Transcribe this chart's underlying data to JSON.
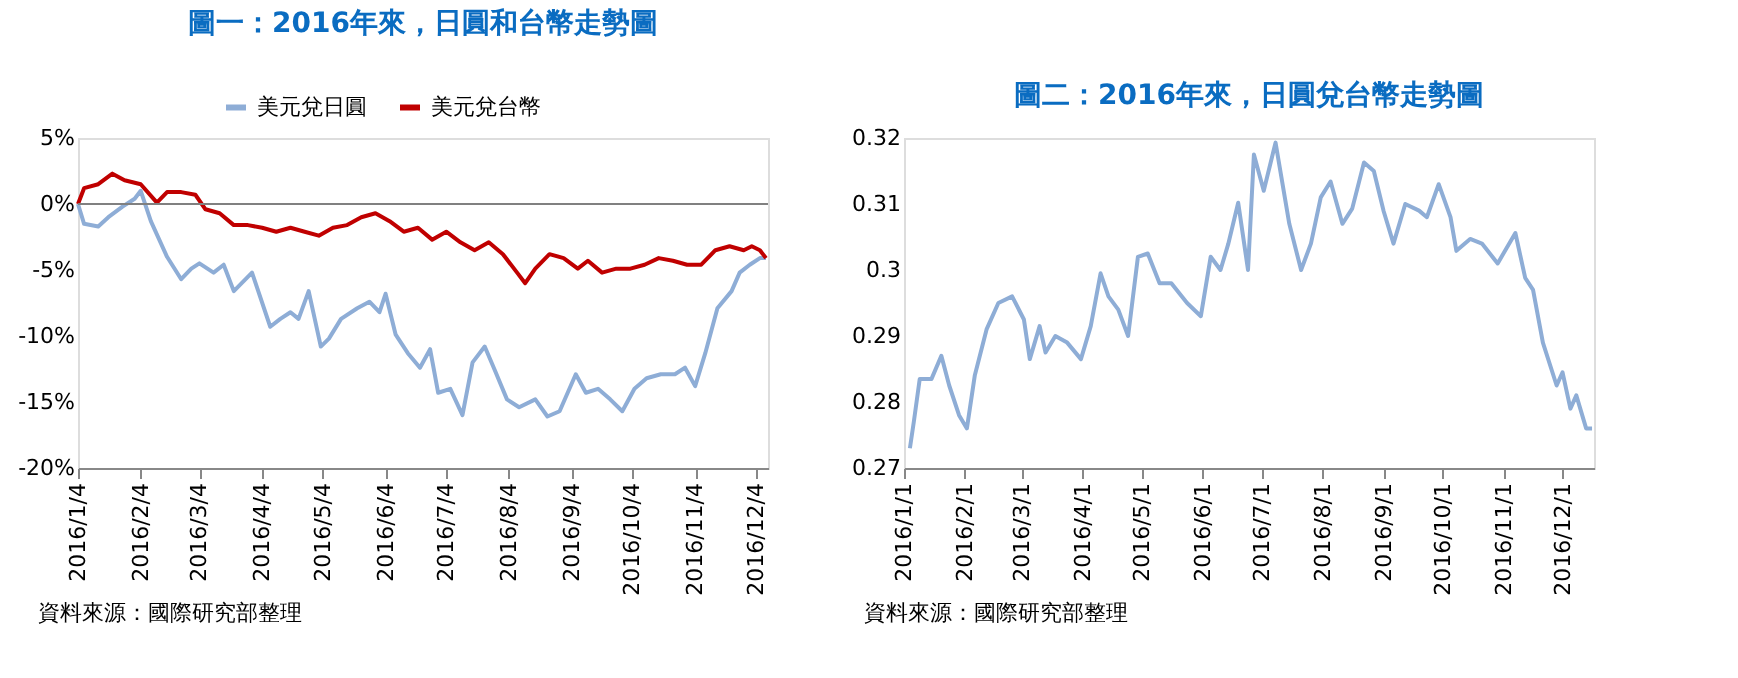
{
  "chart_data": [
    {
      "type": "line",
      "title": "圖一：2016年來，日圓和台幣走勢圖",
      "legend": "top",
      "grid": false,
      "marker": "none",
      "line_style": "solid",
      "xlim": [
        "2016-01-04",
        "2016-12-10"
      ],
      "xticks": [
        {
          "value": "2016-01-04",
          "label": "2016/1/4"
        },
        {
          "value": "2016-02-04",
          "label": "2016/2/4"
        },
        {
          "value": "2016-03-04",
          "label": "2016/3/4"
        },
        {
          "value": "2016-04-04",
          "label": "2016/4/4"
        },
        {
          "value": "2016-05-04",
          "label": "2016/5/4"
        },
        {
          "value": "2016-06-04",
          "label": "2016/6/4"
        },
        {
          "value": "2016-07-04",
          "label": "2016/7/4"
        },
        {
          "value": "2016-08-04",
          "label": "2016/8/4"
        },
        {
          "value": "2016-09-04",
          "label": "2016/9/4"
        },
        {
          "value": "2016-10-04",
          "label": "2016/10/4"
        },
        {
          "value": "2016-11-04",
          "label": "2016/11/4"
        },
        {
          "value": "2016-12-04",
          "label": "2016/12/4"
        }
      ],
      "ylim": [
        -20,
        5
      ],
      "yticks": [
        {
          "value": -20,
          "label": "-20%"
        },
        {
          "value": -15,
          "label": "-15%"
        },
        {
          "value": -10,
          "label": "-10%"
        },
        {
          "value": -5,
          "label": "-5%"
        },
        {
          "value": 0,
          "label": "0%"
        },
        {
          "value": 5,
          "label": "5%"
        }
      ],
      "ref_lines": [
        {
          "axis": "y",
          "value": 0,
          "color": "#808080"
        }
      ],
      "series": [
        {
          "name": "美元兌日圓",
          "color": "#8eadd6",
          "x": [
            "2016-01-04",
            "2016-01-07",
            "2016-01-14",
            "2016-01-19",
            "2016-01-26",
            "2016-02-01",
            "2016-02-04",
            "2016-02-09",
            "2016-02-17",
            "2016-02-24",
            "2016-02-29",
            "2016-03-04",
            "2016-03-11",
            "2016-03-16",
            "2016-03-21",
            "2016-03-30",
            "2016-04-08",
            "2016-04-13",
            "2016-04-18",
            "2016-04-22",
            "2016-04-27",
            "2016-05-03",
            "2016-05-07",
            "2016-05-13",
            "2016-05-21",
            "2016-05-27",
            "2016-06-01",
            "2016-06-04",
            "2016-06-09",
            "2016-06-15",
            "2016-06-21",
            "2016-06-26",
            "2016-06-30",
            "2016-07-06",
            "2016-07-12",
            "2016-07-17",
            "2016-07-23",
            "2016-07-28",
            "2016-08-03",
            "2016-08-09",
            "2016-08-17",
            "2016-08-23",
            "2016-08-29",
            "2016-09-06",
            "2016-09-11",
            "2016-09-17",
            "2016-09-23",
            "2016-09-29",
            "2016-10-05",
            "2016-10-11",
            "2016-10-18",
            "2016-10-25",
            "2016-10-30",
            "2016-11-04",
            "2016-11-09",
            "2016-11-15",
            "2016-11-22",
            "2016-11-26",
            "2016-12-01",
            "2016-12-06",
            "2016-12-09"
          ],
          "values": [
            0,
            -1.5,
            -1.7,
            -1,
            -0.2,
            0.4,
            1,
            -1.3,
            -4,
            -5.7,
            -4.9,
            -4.5,
            -5.2,
            -4.6,
            -6.6,
            -5.2,
            -9.3,
            -8.7,
            -8.2,
            -8.7,
            -6.6,
            -10.8,
            -10.2,
            -8.7,
            -7.9,
            -7.4,
            -8.2,
            -6.8,
            -9.9,
            -11.3,
            -12.4,
            -11,
            -14.3,
            -14,
            -16,
            -12,
            -10.8,
            -12.6,
            -14.8,
            -15.4,
            -14.8,
            -16.1,
            -15.7,
            -12.9,
            -14.3,
            -14,
            -14.8,
            -15.7,
            -14,
            -13.2,
            -12.9,
            -12.9,
            -12.4,
            -13.8,
            -11.3,
            -7.9,
            -6.6,
            -5.2,
            -4.6,
            -4.1,
            -4.1
          ]
        },
        {
          "name": "美元兌台幣",
          "color": "#c00000",
          "x": [
            "2016-01-04",
            "2016-01-07",
            "2016-01-14",
            "2016-01-21",
            "2016-01-27",
            "2016-02-04",
            "2016-02-12",
            "2016-02-17",
            "2016-02-24",
            "2016-03-02",
            "2016-03-07",
            "2016-03-14",
            "2016-03-21",
            "2016-03-28",
            "2016-04-04",
            "2016-04-11",
            "2016-04-18",
            "2016-04-25",
            "2016-05-02",
            "2016-05-09",
            "2016-05-16",
            "2016-05-23",
            "2016-05-30",
            "2016-06-06",
            "2016-06-13",
            "2016-06-20",
            "2016-06-27",
            "2016-07-04",
            "2016-07-11",
            "2016-07-18",
            "2016-07-25",
            "2016-08-01",
            "2016-08-08",
            "2016-08-12",
            "2016-08-17",
            "2016-08-24",
            "2016-08-31",
            "2016-09-07",
            "2016-09-12",
            "2016-09-19",
            "2016-09-26",
            "2016-10-03",
            "2016-10-10",
            "2016-10-17",
            "2016-10-24",
            "2016-10-31",
            "2016-11-07",
            "2016-11-14",
            "2016-11-21",
            "2016-11-28",
            "2016-12-02",
            "2016-12-06",
            "2016-12-09"
          ],
          "values": [
            0,
            1.2,
            1.5,
            2.3,
            1.8,
            1.5,
            0.1,
            0.9,
            0.9,
            0.7,
            -0.4,
            -0.7,
            -1.6,
            -1.6,
            -1.8,
            -2.1,
            -1.8,
            -2.1,
            -2.4,
            -1.8,
            -1.6,
            -1,
            -0.7,
            -1.3,
            -2.1,
            -1.8,
            -2.7,
            -2.1,
            -2.9,
            -3.5,
            -2.9,
            -3.8,
            -5.2,
            -6,
            -4.9,
            -3.8,
            -4.1,
            -4.9,
            -4.3,
            -5.2,
            -4.9,
            -4.9,
            -4.6,
            -4.1,
            -4.3,
            -4.6,
            -4.6,
            -3.5,
            -3.2,
            -3.5,
            -3.2,
            -3.5,
            -4.1
          ]
        }
      ],
      "annotations": [
        "資料來源：國際研究部整理"
      ]
    },
    {
      "type": "line",
      "title": "圖二：2016年來，日圓兌台幣走勢圖",
      "grid": false,
      "marker": "none",
      "line_style": "solid",
      "xlim": [
        "2016-01-01",
        "2016-12-17"
      ],
      "xticks": [
        {
          "value": "2016-01-01",
          "label": "2016/1/1"
        },
        {
          "value": "2016-02-01",
          "label": "2016/2/1"
        },
        {
          "value": "2016-03-01",
          "label": "2016/3/1"
        },
        {
          "value": "2016-04-01",
          "label": "2016/4/1"
        },
        {
          "value": "2016-05-01",
          "label": "2016/5/1"
        },
        {
          "value": "2016-06-01",
          "label": "2016/6/1"
        },
        {
          "value": "2016-07-01",
          "label": "2016/7/1"
        },
        {
          "value": "2016-08-01",
          "label": "2016/8/1"
        },
        {
          "value": "2016-09-01",
          "label": "2016/9/1"
        },
        {
          "value": "2016-10-01",
          "label": "2016/10/1"
        },
        {
          "value": "2016-11-01",
          "label": "2016/11/1"
        },
        {
          "value": "2016-12-01",
          "label": "2016/12/1"
        }
      ],
      "ylim": [
        0.27,
        0.32
      ],
      "yticks": [
        0.27,
        0.28,
        0.29,
        {
          "value": 0.3,
          "label": "0.3"
        },
        0.31,
        0.32
      ],
      "series": [
        {
          "color": "#8eadd6",
          "x": [
            "2016-01-04",
            "2016-01-06",
            "2016-01-09",
            "2016-01-15",
            "2016-01-20",
            "2016-01-24",
            "2016-01-29",
            "2016-02-02",
            "2016-02-06",
            "2016-02-12",
            "2016-02-18",
            "2016-02-25",
            "2016-03-02",
            "2016-03-05",
            "2016-03-10",
            "2016-03-13",
            "2016-03-18",
            "2016-03-24",
            "2016-03-31",
            "2016-04-05",
            "2016-04-10",
            "2016-04-14",
            "2016-04-19",
            "2016-04-24",
            "2016-04-29",
            "2016-05-04",
            "2016-05-10",
            "2016-05-16",
            "2016-05-24",
            "2016-05-31",
            "2016-06-05",
            "2016-06-10",
            "2016-06-14",
            "2016-06-19",
            "2016-06-24",
            "2016-06-27",
            "2016-07-02",
            "2016-07-08",
            "2016-07-15",
            "2016-07-21",
            "2016-07-26",
            "2016-07-31",
            "2016-08-05",
            "2016-08-11",
            "2016-08-16",
            "2016-08-22",
            "2016-08-27",
            "2016-09-01",
            "2016-09-06",
            "2016-09-12",
            "2016-09-19",
            "2016-09-23",
            "2016-09-29",
            "2016-10-05",
            "2016-10-08",
            "2016-10-15",
            "2016-10-21",
            "2016-10-29",
            "2016-11-07",
            "2016-11-12",
            "2016-11-16",
            "2016-11-21",
            "2016-11-28",
            "2016-12-01",
            "2016-12-05",
            "2016-12-08",
            "2016-12-13",
            "2016-12-16"
          ],
          "values": [
            0.273,
            0.277,
            0.2835,
            0.2835,
            0.287,
            0.2825,
            0.278,
            0.276,
            0.284,
            0.291,
            0.295,
            0.296,
            0.2925,
            0.2865,
            0.2915,
            0.2875,
            0.29,
            0.289,
            0.2865,
            0.2915,
            0.2995,
            0.296,
            0.294,
            0.29,
            0.302,
            0.3025,
            0.298,
            0.298,
            0.295,
            0.293,
            0.302,
            0.3,
            0.304,
            0.3102,
            0.3,
            0.3175,
            0.312,
            0.3193,
            0.307,
            0.3,
            0.304,
            0.311,
            0.3134,
            0.307,
            0.3093,
            0.3163,
            0.315,
            0.3089,
            0.304,
            0.31,
            0.309,
            0.308,
            0.313,
            0.308,
            0.3029,
            0.3047,
            0.304,
            0.301,
            0.3056,
            0.2988,
            0.297,
            0.289,
            0.2825,
            0.2845,
            0.279,
            0.281,
            0.276,
            0.276
          ]
        }
      ],
      "annotations": [
        "資料來源：國際研究部整理"
      ]
    }
  ]
}
